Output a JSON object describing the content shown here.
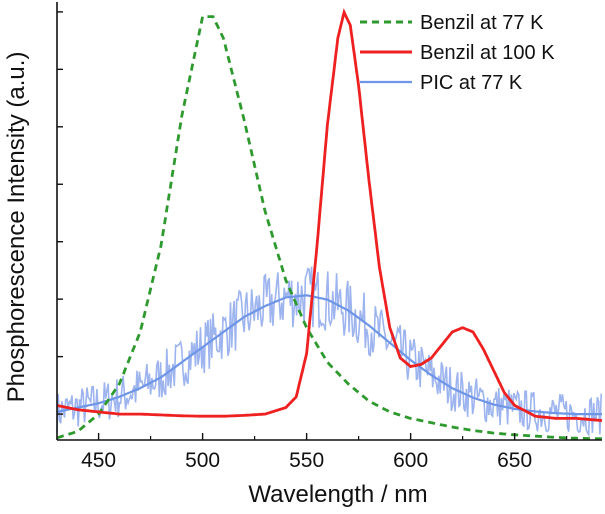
{
  "chart_data": {
    "type": "line",
    "xlabel": "Wavelength / nm",
    "ylabel": "Phosphorescence Intensity (a.u.)",
    "xlim": [
      430,
      692
    ],
    "ylim": [
      0,
      1.0
    ],
    "xticks": [
      450,
      500,
      550,
      600,
      650
    ],
    "xtick_labels": [
      "450",
      "500",
      "550",
      "600",
      "650"
    ],
    "y_tick_labels_shown": false,
    "legend_position": "top-right",
    "series": [
      {
        "name": "Benzil at 77 K",
        "color": "#2e9a2e",
        "style": "dashed",
        "x": [
          430,
          440,
          450,
          460,
          470,
          480,
          490,
          500,
          505,
          510,
          520,
          530,
          540,
          550,
          560,
          570,
          580,
          590,
          600,
          610,
          620,
          630,
          640,
          650,
          660,
          670,
          680,
          692
        ],
        "y": [
          0.005,
          0.02,
          0.06,
          0.13,
          0.25,
          0.45,
          0.75,
          0.98,
          0.98,
          0.93,
          0.74,
          0.53,
          0.37,
          0.26,
          0.18,
          0.13,
          0.09,
          0.065,
          0.05,
          0.04,
          0.03,
          0.022,
          0.016,
          0.012,
          0.009,
          0.006,
          0.004,
          0.003
        ]
      },
      {
        "name": "Benzil at 100 K",
        "color": "#ee2020",
        "style": "solid",
        "x": [
          430,
          440,
          450,
          460,
          470,
          480,
          490,
          500,
          510,
          520,
          530,
          540,
          545,
          550,
          555,
          560,
          565,
          568,
          571,
          575,
          580,
          585,
          590,
          595,
          600,
          605,
          610,
          615,
          620,
          625,
          630,
          635,
          640,
          645,
          650,
          660,
          670,
          680,
          692
        ],
        "y": [
          0.08,
          0.07,
          0.065,
          0.06,
          0.06,
          0.058,
          0.056,
          0.055,
          0.055,
          0.057,
          0.06,
          0.075,
          0.1,
          0.2,
          0.45,
          0.73,
          0.93,
          0.99,
          0.96,
          0.82,
          0.6,
          0.4,
          0.26,
          0.19,
          0.17,
          0.175,
          0.19,
          0.22,
          0.25,
          0.26,
          0.25,
          0.21,
          0.16,
          0.11,
          0.08,
          0.055,
          0.05,
          0.05,
          0.045
        ]
      },
      {
        "name": "PIC at 77 K",
        "color": "#6e95e6",
        "style": "solid",
        "x": [
          430,
          440,
          450,
          460,
          470,
          480,
          490,
          500,
          510,
          520,
          530,
          540,
          550,
          560,
          570,
          580,
          590,
          600,
          610,
          620,
          630,
          640,
          650,
          660,
          670,
          680,
          692
        ],
        "y": [
          0.065,
          0.075,
          0.085,
          0.1,
          0.12,
          0.145,
          0.18,
          0.215,
          0.25,
          0.285,
          0.31,
          0.33,
          0.335,
          0.325,
          0.3,
          0.265,
          0.225,
          0.185,
          0.15,
          0.12,
          0.098,
          0.082,
          0.072,
          0.066,
          0.062,
          0.06,
          0.06
        ]
      }
    ],
    "pic_raw_noise_amplitude": 0.07,
    "pic_raw_color": "#9db4ef"
  }
}
